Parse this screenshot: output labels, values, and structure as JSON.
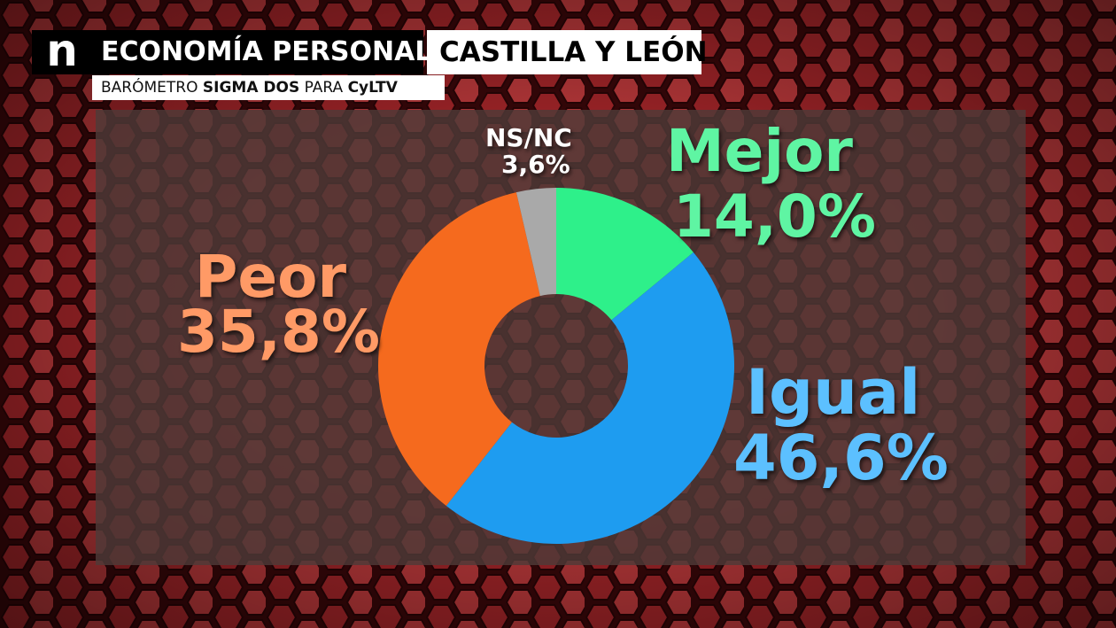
{
  "header": {
    "logo": "n",
    "section": "ECONOMÍA PERSONAL",
    "region": "CASTILLA Y LEÓN",
    "source_prefix": "BARÓMETRO ",
    "source_brand": "SIGMA DOS",
    "source_mid": " PARA ",
    "source_client": "CyLTV"
  },
  "colors": {
    "mejor": "#2ef08a",
    "igual": "#1e9cf0",
    "peor": "#f56a1e",
    "nsnc": "#a9a9a9",
    "mejor_label": "#5ff5a3",
    "igual_label": "#5cc0ff",
    "peor_label": "#ff9a66",
    "nsnc_label": "#ffffff"
  },
  "chart_data": {
    "type": "pie",
    "donut": true,
    "unit": "%",
    "categories": [
      "Mejor",
      "Igual",
      "Peor",
      "NS/NC"
    ],
    "values": [
      14.0,
      46.6,
      35.8,
      3.6
    ],
    "value_labels": [
      "14,0%",
      "46,6%",
      "35,8%",
      "3,6%"
    ],
    "legend": "none"
  }
}
